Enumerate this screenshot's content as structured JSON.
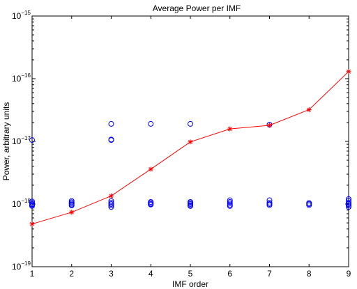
{
  "chart_data": {
    "type": "scatter",
    "title": "Average Power per IMF",
    "xlabel": "IMF order",
    "ylabel": "Power, arbitrary units",
    "xlim": [
      1,
      9
    ],
    "ylim": [
      1e-19,
      1e-15
    ],
    "yscale": "log",
    "grid": false,
    "legend": "none",
    "x_ticks": [
      "1",
      "2",
      "3",
      "4",
      "5",
      "6",
      "7",
      "8",
      "9"
    ],
    "y_ticks": [
      {
        "base": "10",
        "exp": "−19"
      },
      {
        "base": "10",
        "exp": "−18"
      },
      {
        "base": "10",
        "exp": "−17"
      },
      {
        "base": "10",
        "exp": "−16"
      },
      {
        "base": "10",
        "exp": "−15"
      }
    ],
    "series": [
      {
        "marker": "circle",
        "line": "none",
        "color": "#0000ff",
        "points": [
          [
            1,
            1.05e-17
          ],
          [
            1,
            1.1e-18
          ],
          [
            1,
            1.05e-18
          ],
          [
            1,
            1e-18
          ],
          [
            1,
            9.7e-19
          ],
          [
            1,
            9.3e-19
          ],
          [
            2,
            1.12e-18
          ],
          [
            2,
            1.07e-18
          ],
          [
            2,
            1.02e-18
          ],
          [
            2,
            9.8e-19
          ],
          [
            2,
            9.5e-19
          ],
          [
            3,
            1.9e-17
          ],
          [
            3,
            1.07e-17
          ],
          [
            3,
            1.05e-17
          ],
          [
            3,
            1.12e-18
          ],
          [
            3,
            1.05e-18
          ],
          [
            3,
            1e-18
          ],
          [
            3,
            9.5e-19
          ],
          [
            3,
            9e-19
          ],
          [
            4,
            1.9e-17
          ],
          [
            4,
            1.08e-18
          ],
          [
            4,
            1.04e-18
          ],
          [
            4,
            1e-18
          ],
          [
            4,
            9.8e-19
          ],
          [
            5,
            1.9e-17
          ],
          [
            5,
            1.08e-18
          ],
          [
            5,
            1.04e-18
          ],
          [
            5,
            1e-18
          ],
          [
            5,
            9.6e-19
          ],
          [
            5,
            9.3e-19
          ],
          [
            6,
            1.15e-18
          ],
          [
            6,
            1.08e-18
          ],
          [
            6,
            1.02e-18
          ],
          [
            6,
            9.7e-19
          ],
          [
            6,
            9.3e-19
          ],
          [
            7,
            1.85e-17
          ],
          [
            7,
            1.15e-18
          ],
          [
            7,
            1.05e-18
          ],
          [
            7,
            1e-18
          ],
          [
            7,
            9.6e-19
          ],
          [
            8,
            1.04e-18
          ],
          [
            8,
            1e-18
          ],
          [
            8,
            9.6e-19
          ],
          [
            9,
            1.2e-18
          ],
          [
            9,
            1.12e-18
          ],
          [
            9,
            1.05e-18
          ],
          [
            9,
            1e-18
          ],
          [
            9,
            9.5e-19
          ],
          [
            9,
            9e-19
          ]
        ]
      },
      {
        "marker": "asterisk",
        "line": "solid",
        "color": "#ff0000",
        "points": [
          [
            1,
            4.8e-19
          ],
          [
            2,
            7.4e-19
          ],
          [
            3,
            1.35e-18
          ],
          [
            4,
            3.6e-18
          ],
          [
            5,
            9.8e-18
          ],
          [
            6,
            1.58e-17
          ],
          [
            7,
            1.8e-17
          ],
          [
            8,
            3.2e-17
          ],
          [
            9,
            1.3e-16
          ]
        ]
      }
    ]
  }
}
